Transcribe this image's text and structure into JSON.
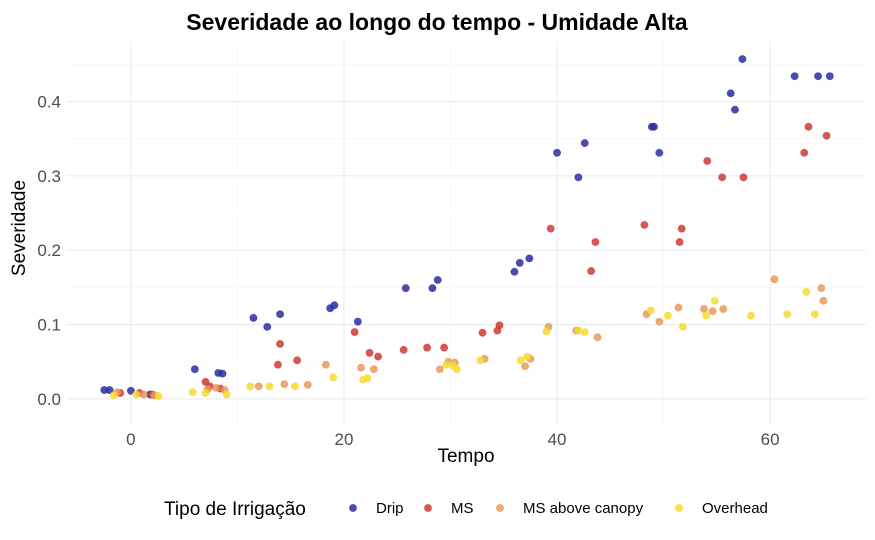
{
  "chart_data": {
    "type": "scatter",
    "title": "Severidade ao longo do tempo - Umidade Alta",
    "xlabel": "Tempo",
    "ylabel": "Severidade",
    "xlim": [
      -6,
      69
    ],
    "ylim": [
      -0.035,
      0.48
    ],
    "x_ticks": [
      0,
      20,
      40,
      60
    ],
    "y_ticks": [
      0.0,
      0.1,
      0.2,
      0.3,
      0.4
    ],
    "x_tick_labels": [
      "0",
      "20",
      "40",
      "60"
    ],
    "y_tick_labels": [
      "0.0",
      "0.1",
      "0.2",
      "0.3",
      "0.4"
    ],
    "x_minor": [
      -10,
      10,
      30,
      50,
      70
    ],
    "y_minor": [
      0.05,
      0.15,
      0.25,
      0.35,
      0.45
    ],
    "grid": true,
    "legend": {
      "title": "Tipo de Irrigação",
      "position": "bottom"
    },
    "series": [
      {
        "name": "Drip",
        "color": "#2a2ea0",
        "points": [
          [
            -2.5,
            0.012
          ],
          [
            -2.0,
            0.012
          ],
          [
            0.0,
            0.011
          ],
          [
            1.8,
            0.006
          ],
          [
            6.0,
            0.04
          ],
          [
            8.2,
            0.035
          ],
          [
            8.6,
            0.034
          ],
          [
            11.5,
            0.109
          ],
          [
            12.8,
            0.097
          ],
          [
            14.0,
            0.114
          ],
          [
            18.7,
            0.122
          ],
          [
            19.1,
            0.126
          ],
          [
            21.3,
            0.104
          ],
          [
            25.8,
            0.149
          ],
          [
            28.3,
            0.149
          ],
          [
            28.8,
            0.16
          ],
          [
            36.0,
            0.171
          ],
          [
            36.5,
            0.183
          ],
          [
            37.4,
            0.189
          ],
          [
            40.0,
            0.331
          ],
          [
            42.0,
            0.298
          ],
          [
            42.6,
            0.344
          ],
          [
            48.9,
            0.366
          ],
          [
            49.1,
            0.366
          ],
          [
            49.6,
            0.331
          ],
          [
            56.3,
            0.411
          ],
          [
            56.7,
            0.389
          ],
          [
            57.4,
            0.457
          ],
          [
            62.3,
            0.434
          ],
          [
            64.5,
            0.434
          ],
          [
            65.6,
            0.434
          ]
        ]
      },
      {
        "name": "MS",
        "color": "#cf3a36",
        "points": [
          [
            -1.0,
            0.008
          ],
          [
            0.8,
            0.008
          ],
          [
            2.0,
            0.006
          ],
          [
            7.0,
            0.023
          ],
          [
            7.4,
            0.017
          ],
          [
            8.4,
            0.014
          ],
          [
            13.8,
            0.046
          ],
          [
            14.0,
            0.074
          ],
          [
            15.6,
            0.052
          ],
          [
            21.0,
            0.09
          ],
          [
            22.4,
            0.062
          ],
          [
            23.2,
            0.057
          ],
          [
            25.6,
            0.066
          ],
          [
            27.8,
            0.069
          ],
          [
            29.4,
            0.069
          ],
          [
            33.0,
            0.089
          ],
          [
            34.4,
            0.092
          ],
          [
            34.6,
            0.099
          ],
          [
            39.4,
            0.229
          ],
          [
            43.2,
            0.172
          ],
          [
            43.6,
            0.211
          ],
          [
            48.2,
            0.234
          ],
          [
            51.5,
            0.211
          ],
          [
            51.7,
            0.229
          ],
          [
            54.1,
            0.32
          ],
          [
            55.5,
            0.298
          ],
          [
            57.5,
            0.298
          ],
          [
            63.2,
            0.331
          ],
          [
            63.6,
            0.366
          ],
          [
            65.3,
            0.354
          ]
        ]
      },
      {
        "name": "MS above canopy",
        "color": "#e79a5a",
        "points": [
          [
            -1.3,
            0.009
          ],
          [
            1.2,
            0.006
          ],
          [
            2.2,
            0.005
          ],
          [
            7.2,
            0.013
          ],
          [
            8.0,
            0.015
          ],
          [
            8.8,
            0.012
          ],
          [
            12.0,
            0.017
          ],
          [
            14.4,
            0.02
          ],
          [
            16.6,
            0.019
          ],
          [
            18.3,
            0.046
          ],
          [
            21.6,
            0.042
          ],
          [
            22.8,
            0.04
          ],
          [
            29.0,
            0.04
          ],
          [
            29.8,
            0.05
          ],
          [
            30.4,
            0.049
          ],
          [
            33.2,
            0.054
          ],
          [
            37.0,
            0.044
          ],
          [
            37.5,
            0.054
          ],
          [
            39.2,
            0.097
          ],
          [
            41.8,
            0.092
          ],
          [
            43.8,
            0.083
          ],
          [
            48.4,
            0.114
          ],
          [
            49.6,
            0.104
          ],
          [
            51.4,
            0.123
          ],
          [
            53.8,
            0.121
          ],
          [
            54.6,
            0.118
          ],
          [
            55.6,
            0.121
          ],
          [
            60.4,
            0.161
          ],
          [
            64.8,
            0.149
          ],
          [
            65.0,
            0.132
          ]
        ]
      },
      {
        "name": "Overhead",
        "color": "#f5dc2e",
        "points": [
          [
            -1.6,
            0.005
          ],
          [
            0.5,
            0.006
          ],
          [
            2.6,
            0.004
          ],
          [
            5.8,
            0.009
          ],
          [
            7.0,
            0.008
          ],
          [
            9.0,
            0.006
          ],
          [
            11.2,
            0.017
          ],
          [
            13.0,
            0.017
          ],
          [
            15.4,
            0.017
          ],
          [
            19.0,
            0.029
          ],
          [
            21.8,
            0.026
          ],
          [
            22.2,
            0.028
          ],
          [
            29.6,
            0.046
          ],
          [
            30.2,
            0.045
          ],
          [
            30.6,
            0.04
          ],
          [
            32.8,
            0.052
          ],
          [
            36.6,
            0.052
          ],
          [
            37.2,
            0.057
          ],
          [
            39.0,
            0.091
          ],
          [
            42.0,
            0.092
          ],
          [
            42.6,
            0.09
          ],
          [
            48.8,
            0.119
          ],
          [
            50.4,
            0.112
          ],
          [
            51.8,
            0.097
          ],
          [
            54.0,
            0.112
          ],
          [
            54.8,
            0.132
          ],
          [
            58.2,
            0.112
          ],
          [
            61.6,
            0.114
          ],
          [
            63.4,
            0.144
          ],
          [
            64.2,
            0.114
          ]
        ]
      }
    ]
  }
}
